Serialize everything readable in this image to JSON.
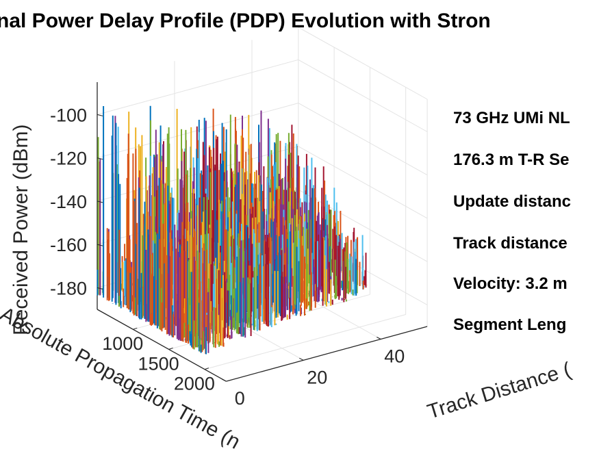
{
  "chart_data": {
    "type": "bar",
    "title": "nal Power Delay Profile (PDP) Evolution with Stron",
    "xlabel": "Absolute Propagation Time (n",
    "ylabel": "Track Distance (",
    "zlabel": "Received Power (dBm)",
    "x_ticks": [
      "1000",
      "1500",
      "2000"
    ],
    "y_ticks": [
      "0",
      "20",
      "40"
    ],
    "z_ticks": [
      "-100",
      "-120",
      "-140",
      "-160",
      "-180"
    ],
    "x_range": [
      500,
      2300
    ],
    "y_range": [
      0,
      52
    ],
    "z_range": [
      -190,
      -85
    ],
    "annotations": [
      "73 GHz UMi NL",
      "176.3 m T-R Se",
      "Update distanc",
      "Track distance",
      "Velocity: 3.2 m",
      "Segment Leng"
    ],
    "series_colors": [
      "#0072BD",
      "#D95319",
      "#EDB120",
      "#7E2F8E",
      "#77AC30",
      "#4DBEEE",
      "#A2142F"
    ],
    "series": [
      {
        "track_distance": 0,
        "delay_range_ns": [
          540,
          2050
        ],
        "power_range_dbm": [
          -182,
          -88
        ]
      },
      {
        "track_distance": 4,
        "delay_range_ns": [
          540,
          2000
        ],
        "power_range_dbm": [
          -182,
          -92
        ]
      },
      {
        "track_distance": 8,
        "delay_range_ns": [
          540,
          1950
        ],
        "power_range_dbm": [
          -182,
          -95
        ]
      },
      {
        "track_distance": 12,
        "delay_range_ns": [
          540,
          1950
        ],
        "power_range_dbm": [
          -182,
          -98
        ]
      },
      {
        "track_distance": 16,
        "delay_range_ns": [
          540,
          1900
        ],
        "power_range_dbm": [
          -182,
          -98
        ]
      },
      {
        "track_distance": 20,
        "delay_range_ns": [
          540,
          1900
        ],
        "power_range_dbm": [
          -182,
          -100
        ]
      },
      {
        "track_distance": 24,
        "delay_range_ns": [
          540,
          1850
        ],
        "power_range_dbm": [
          -182,
          -102
        ]
      },
      {
        "track_distance": 28,
        "delay_range_ns": [
          540,
          1850
        ],
        "power_range_dbm": [
          -182,
          -104
        ]
      },
      {
        "track_distance": 32,
        "delay_range_ns": [
          540,
          1800
        ],
        "power_range_dbm": [
          -182,
          -106
        ]
      },
      {
        "track_distance": 36,
        "delay_range_ns": [
          540,
          1800
        ],
        "power_range_dbm": [
          -182,
          -108
        ]
      },
      {
        "track_distance": 40,
        "delay_range_ns": [
          540,
          1800
        ],
        "power_range_dbm": [
          -182,
          -110
        ]
      },
      {
        "track_distance": 44,
        "delay_range_ns": [
          540,
          1750
        ],
        "power_range_dbm": [
          -182,
          -115
        ]
      },
      {
        "track_distance": 48,
        "delay_range_ns": [
          540,
          1700
        ],
        "power_range_dbm": [
          -182,
          -120
        ]
      }
    ],
    "grid": true
  }
}
